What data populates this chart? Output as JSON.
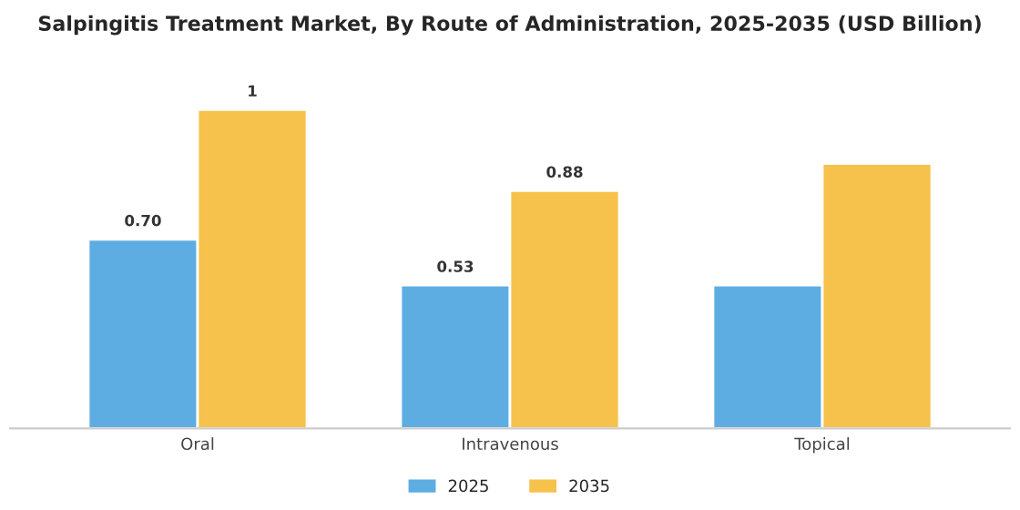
{
  "chart_data": {
    "type": "bar",
    "title": "Salpingitis Treatment Market, By Route of Administration, 2025-2035 (USD Billion)",
    "categories": [
      "Oral",
      "Intravenous",
      "Topical"
    ],
    "series": [
      {
        "name": "2025",
        "color": "#5dade2",
        "values": [
          0.7,
          0.53,
          0.53
        ],
        "value_labels": [
          "0.70",
          "0.53",
          null
        ]
      },
      {
        "name": "2035",
        "color": "#f7c24b",
        "values": [
          1.18,
          0.88,
          0.98
        ],
        "value_labels": [
          "1",
          "0.88",
          null
        ]
      }
    ],
    "grid": false,
    "legend": "bottom",
    "tick_labels": "x"
  }
}
